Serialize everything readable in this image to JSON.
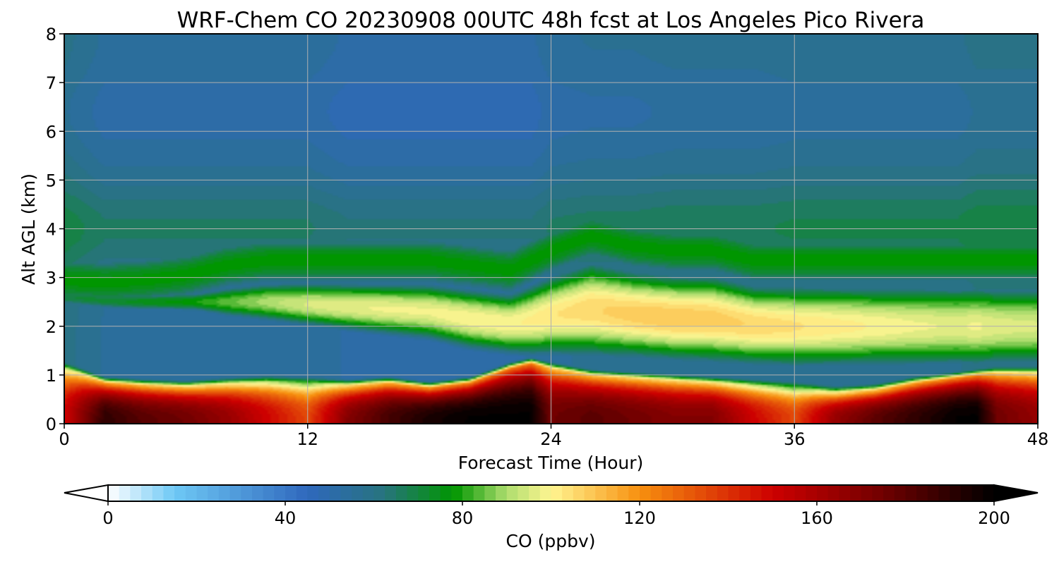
{
  "chart_data": {
    "type": "heatmap",
    "title": "WRF-Chem CO  20230908 00UTC 48h fcst at Los Angeles Pico Rivera",
    "xlabel": "Forecast Time (Hour)",
    "ylabel": "Alt AGL (km)",
    "xlim": [
      0,
      48
    ],
    "ylim": [
      0,
      8
    ],
    "x_ticks": [
      0,
      12,
      24,
      36,
      48
    ],
    "y_ticks": [
      0,
      1,
      2,
      3,
      4,
      5,
      6,
      7,
      8
    ],
    "grid": true,
    "colorbar": {
      "label": "CO  (ppbv)",
      "range": [
        0,
        200
      ],
      "ticks": [
        0,
        40,
        80,
        120,
        160,
        200
      ],
      "extend": "both",
      "colormap": [
        {
          "v": 0,
          "c": "#ffffff"
        },
        {
          "v": 15,
          "c": "#6ec8f5"
        },
        {
          "v": 45,
          "c": "#2f68bd"
        },
        {
          "v": 62,
          "c": "#28737f"
        },
        {
          "v": 78,
          "c": "#009600"
        },
        {
          "v": 90,
          "c": "#aedd6e"
        },
        {
          "v": 100,
          "c": "#fff591"
        },
        {
          "v": 120,
          "c": "#f7900f"
        },
        {
          "v": 150,
          "c": "#cd0000"
        },
        {
          "v": 175,
          "c": "#700000"
        },
        {
          "v": 200,
          "c": "#000000"
        }
      ]
    },
    "hours": [
      0,
      2,
      4,
      6,
      8,
      10,
      12,
      14,
      16,
      18,
      20,
      22,
      23,
      24,
      26,
      28,
      30,
      32,
      34,
      36,
      38,
      40,
      42,
      44,
      45,
      46,
      48
    ],
    "boundary_layer_top_km": [
      1.1,
      0.8,
      0.75,
      0.72,
      0.78,
      0.82,
      0.8,
      0.75,
      0.8,
      0.7,
      0.8,
      1.1,
      1.2,
      1.1,
      0.95,
      0.9,
      0.85,
      0.8,
      0.75,
      0.7,
      0.6,
      0.65,
      0.8,
      0.9,
      0.95,
      1.0,
      1.0
    ],
    "surface_peak_ppbv": [
      150,
      190,
      180,
      175,
      165,
      150,
      135,
      170,
      185,
      195,
      200,
      200,
      200,
      175,
      180,
      175,
      170,
      170,
      150,
      135,
      165,
      180,
      190,
      200,
      200,
      175,
      165
    ],
    "elevated_plume_base_km": [
      2.6,
      2.5,
      2.4,
      2.3,
      2.1,
      2.0,
      1.9,
      1.8,
      1.7,
      1.6,
      1.4,
      1.3,
      1.25,
      1.25,
      1.2,
      1.2,
      1.15,
      1.1,
      1.05,
      1.0,
      1.0,
      1.0,
      1.0,
      1.0,
      1.0,
      1.0,
      1.0
    ],
    "elevated_plume_top_km": [
      2.6,
      2.55,
      2.6,
      2.7,
      2.9,
      3.0,
      3.0,
      3.0,
      3.0,
      3.0,
      2.9,
      2.8,
      3.0,
      3.2,
      3.5,
      3.3,
      3.2,
      3.2,
      3.0,
      3.0,
      3.0,
      3.0,
      3.0,
      3.0,
      3.0,
      3.0,
      3.0
    ],
    "elevated_plume_peak_ppbv": [
      70,
      72,
      75,
      78,
      84,
      90,
      95,
      97,
      98,
      98,
      100,
      100,
      101,
      103,
      106,
      108,
      109,
      108,
      106,
      104,
      102,
      100,
      98,
      97,
      98,
      96,
      95
    ],
    "free_troposphere_ppbv": [
      60,
      55,
      55,
      55,
      55,
      55,
      55,
      52,
      52,
      52,
      52,
      52,
      52,
      55,
      56,
      56,
      57,
      57,
      57,
      58,
      58,
      58,
      58,
      58,
      60,
      60,
      60
    ]
  }
}
